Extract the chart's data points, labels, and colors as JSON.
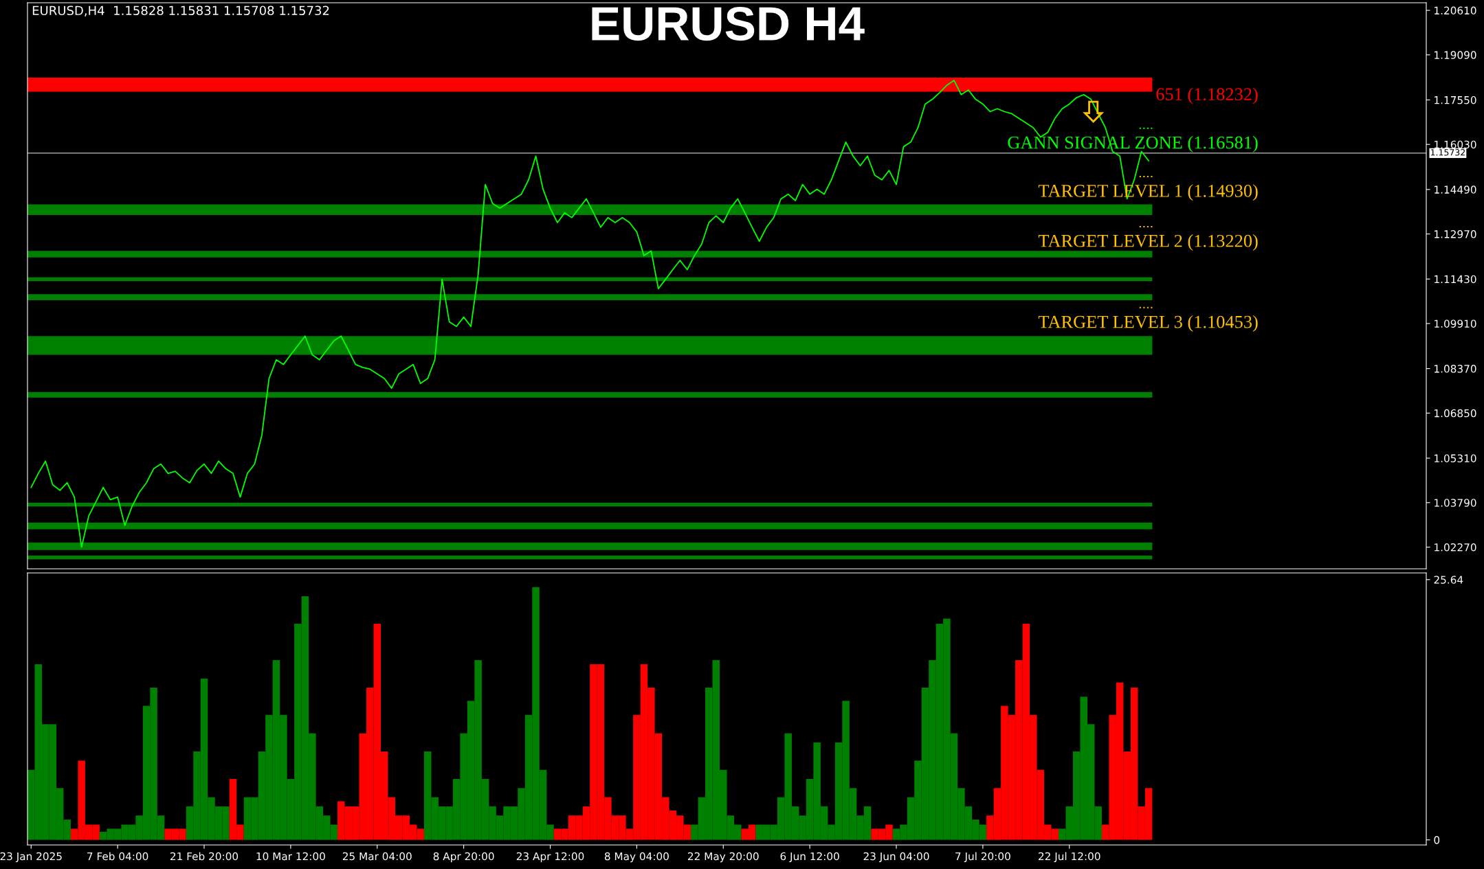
{
  "chart_data": [
    {
      "type": "line",
      "title": "EURUSD H4",
      "tick_labels": "y",
      "grid": false,
      "categories": [
        null,
        null,
        null,
        null,
        null,
        null,
        null,
        null,
        null,
        null,
        null,
        null,
        null,
        null,
        null,
        null,
        null,
        null,
        null,
        null,
        null,
        null,
        null,
        null,
        null,
        null,
        null,
        null,
        null,
        null,
        null,
        null,
        null,
        null,
        null,
        null,
        null,
        null,
        null,
        null,
        null,
        null,
        null,
        null,
        null,
        null,
        null,
        null,
        null,
        null,
        null,
        null,
        null,
        null,
        null,
        null,
        null,
        null,
        null,
        null,
        null,
        null,
        null,
        null,
        null,
        null,
        null,
        null,
        null,
        null,
        null,
        null,
        null,
        null,
        null,
        null,
        null,
        null,
        null,
        null,
        null,
        null,
        null,
        null,
        null,
        null,
        null,
        null,
        null,
        null,
        null,
        null,
        null,
        null,
        null,
        null,
        null,
        null,
        null,
        null,
        null,
        null,
        null,
        null,
        null,
        null,
        null,
        null,
        null,
        null,
        null,
        null,
        null,
        null,
        null,
        null,
        null,
        null,
        null,
        null,
        null,
        null,
        null,
        null,
        null,
        null,
        null,
        null,
        null,
        null,
        null,
        null,
        null,
        null,
        null,
        null,
        null,
        null,
        null,
        null,
        null,
        null,
        null,
        null,
        null,
        null,
        null,
        null,
        null,
        null,
        null,
        null,
        null,
        null,
        null,
        null,
        null,
        null,
        null,
        null,
        null,
        null,
        null,
        null,
        null,
        null,
        null,
        null,
        null,
        null,
        null,
        null,
        null,
        null,
        null,
        null,
        null,
        null,
        null,
        null,
        null,
        null,
        null,
        null,
        null,
        null,
        null,
        null,
        null,
        null,
        null,
        null,
        null,
        null
      ],
      "ylim": [
        1.0153,
        1.2087
      ],
      "yticks": [
        {
          "value": 1.2061,
          "label": "1.20610"
        },
        {
          "value": 1.1909,
          "label": "1.19090"
        },
        {
          "value": 1.1755,
          "label": "1.17550"
        },
        {
          "value": 1.1603,
          "label": "1.16030"
        },
        {
          "value": 1.1449,
          "label": "1.14490"
        },
        {
          "value": 1.1297,
          "label": "1.12970"
        },
        {
          "value": 1.1143,
          "label": "1.11430"
        },
        {
          "value": 1.0991,
          "label": "1.09910"
        },
        {
          "value": 1.0837,
          "label": "1.08370"
        },
        {
          "value": 1.0685,
          "label": "1.06850"
        },
        {
          "value": 1.0531,
          "label": "1.05310"
        },
        {
          "value": 1.0379,
          "label": "1.03790"
        },
        {
          "value": 1.0227,
          "label": "1.02270"
        }
      ],
      "ref_lines": [
        {
          "axis": "y",
          "value": 1.15732,
          "label": "1.15732",
          "color": "#c0c0c0",
          "line_style": "solid"
        },
        {
          "axis": "y",
          "value": 1.18232,
          "label": "651 (1.18232)",
          "color": "#ff0000",
          "line_style": "dotted"
        },
        {
          "axis": "y",
          "value": 1.16581,
          "label": "GANN SIGNAL ZONE (1.16581)",
          "color": "#00ff00",
          "line_style": "dotted"
        },
        {
          "axis": "y",
          "value": 1.1493,
          "label": "TARGET LEVEL 1 (1.14930)",
          "color": "#ffc000",
          "line_style": "dotted"
        },
        {
          "axis": "y",
          "value": 1.1322,
          "label": "TARGET LEVEL 2 (1.13220)",
          "color": "#ffc000",
          "line_style": "dotted"
        },
        {
          "axis": "y",
          "value": 1.10453,
          "label": "TARGET LEVEL 3 (1.10453)",
          "color": "#ffc000",
          "line_style": "dotted"
        }
      ],
      "bands": [
        {
          "axis": "y",
          "from": 1.1783,
          "to": 1.1831,
          "color": "#ff0000"
        },
        {
          "axis": "y",
          "from": 1.1362,
          "to": 1.1398,
          "color": "#008000"
        },
        {
          "axis": "y",
          "from": 1.1217,
          "to": 1.1239,
          "color": "#008000"
        },
        {
          "axis": "y",
          "from": 1.1136,
          "to": 1.1149,
          "color": "#008000"
        },
        {
          "axis": "y",
          "from": 1.1071,
          "to": 1.1091,
          "color": "#008000"
        },
        {
          "axis": "y",
          "from": 1.0884,
          "to": 1.0948,
          "color": "#008000"
        },
        {
          "axis": "y",
          "from": 1.0738,
          "to": 1.0757,
          "color": "#008000"
        },
        {
          "axis": "y",
          "from": 1.0366,
          "to": 1.0379,
          "color": "#008000"
        },
        {
          "axis": "y",
          "from": 1.0288,
          "to": 1.0311,
          "color": "#008000"
        },
        {
          "axis": "y",
          "from": 1.0217,
          "to": 1.0243,
          "color": "#008000"
        },
        {
          "axis": "y",
          "from": 1.0185,
          "to": 1.0198,
          "color": "#008000"
        }
      ],
      "annotations": [
        "EURUSD,H4  1.15828 1.15831 1.15708 1.15732"
      ],
      "series": [
        {
          "type": "line",
          "color": "#00ff00",
          "values": [
            1.0431,
            1.0479,
            1.0521,
            1.044,
            1.0421,
            1.0447,
            1.0398,
            1.0227,
            1.0334,
            1.0382,
            1.0431,
            1.0389,
            1.0398,
            1.0301,
            1.0366,
            1.0414,
            1.0447,
            1.0495,
            1.0511,
            1.0479,
            1.0486,
            1.0463,
            1.0447,
            1.0489,
            1.0511,
            1.0479,
            1.0521,
            1.0495,
            1.0479,
            1.0398,
            1.0479,
            1.0511,
            1.0609,
            1.0803,
            1.0867,
            1.0851,
            1.0884,
            1.0916,
            1.0948,
            1.0884,
            1.0867,
            1.09,
            1.0932,
            1.0948,
            1.09,
            1.0851,
            1.0841,
            1.0835,
            1.0819,
            1.0803,
            1.077,
            1.0819,
            1.0835,
            1.0851,
            1.0786,
            1.0803,
            1.0867,
            1.1142,
            1.0997,
            1.0981,
            1.1013,
            1.0981,
            1.1158,
            1.1466,
            1.1401,
            1.1385,
            1.1401,
            1.1417,
            1.1433,
            1.1482,
            1.1563,
            1.145,
            1.1385,
            1.1336,
            1.1369,
            1.1353,
            1.1385,
            1.1417,
            1.1369,
            1.132,
            1.1353,
            1.1336,
            1.1353,
            1.1336,
            1.1304,
            1.1223,
            1.1239,
            1.111,
            1.1142,
            1.1175,
            1.1207,
            1.1175,
            1.1223,
            1.1262,
            1.1336,
            1.1359,
            1.1336,
            1.1385,
            1.1417,
            1.1369,
            1.132,
            1.1272,
            1.132,
            1.1353,
            1.1417,
            1.1433,
            1.1411,
            1.1466,
            1.1433,
            1.145,
            1.1433,
            1.1482,
            1.1547,
            1.1611,
            1.1563,
            1.153,
            1.1563,
            1.1498,
            1.1482,
            1.1514,
            1.1466,
            1.1595,
            1.1611,
            1.166,
            1.1741,
            1.1757,
            1.178,
            1.1805,
            1.1822,
            1.1773,
            1.1789,
            1.1757,
            1.1741,
            1.1715,
            1.1725,
            1.1715,
            1.1708,
            1.1692,
            1.1676,
            1.166,
            1.1628,
            1.1644,
            1.1692,
            1.1725,
            1.1741,
            1.1763,
            1.1773,
            1.1757,
            1.1708,
            1.166,
            1.1579,
            1.1563,
            1.1417,
            1.1482,
            1.1579,
            1.1547,
            null,
            null,
            null,
            null,
            null,
            null,
            null,
            null,
            null,
            null,
            null,
            null,
            null,
            null,
            null,
            null,
            null,
            null,
            null,
            null,
            null,
            null,
            null,
            null,
            null,
            null,
            null,
            null,
            null,
            null,
            null,
            null,
            null,
            null,
            null,
            null,
            null,
            null
          ]
        }
      ]
    },
    {
      "type": "bar",
      "grid": false,
      "categories": [
        "23 Jan 2025",
        null,
        null,
        null,
        null,
        null,
        null,
        null,
        null,
        null,
        null,
        null,
        "7 Feb 04:00",
        null,
        null,
        null,
        null,
        null,
        null,
        null,
        null,
        null,
        null,
        null,
        "21 Feb 20:00",
        null,
        null,
        null,
        null,
        null,
        null,
        null,
        null,
        null,
        null,
        null,
        "10 Mar 12:00",
        null,
        null,
        null,
        null,
        null,
        null,
        null,
        null,
        null,
        null,
        null,
        "25 Mar 04:00",
        null,
        null,
        null,
        null,
        null,
        null,
        null,
        null,
        null,
        null,
        null,
        "8 Apr 20:00",
        null,
        null,
        null,
        null,
        null,
        null,
        null,
        null,
        null,
        null,
        null,
        "23 Apr 12:00",
        null,
        null,
        null,
        null,
        null,
        null,
        null,
        null,
        null,
        null,
        null,
        "8 May 04:00",
        null,
        null,
        null,
        null,
        null,
        null,
        null,
        null,
        null,
        null,
        null,
        "22 May 20:00",
        null,
        null,
        null,
        null,
        null,
        null,
        null,
        null,
        null,
        null,
        null,
        "6 Jun 12:00",
        null,
        null,
        null,
        null,
        null,
        null,
        null,
        null,
        null,
        null,
        null,
        "23 Jun 04:00",
        null,
        null,
        null,
        null,
        null,
        null,
        null,
        null,
        null,
        null,
        null,
        "7 Jul 20:00",
        null,
        null,
        null,
        null,
        null,
        null,
        null,
        null,
        null,
        null,
        null,
        "22 Jul 12:00",
        null,
        null,
        null,
        null,
        null,
        null,
        null,
        null,
        null,
        null,
        null,
        null,
        null,
        null,
        null,
        null,
        null,
        null,
        null,
        null,
        null,
        null,
        null,
        null,
        null,
        null,
        null,
        null,
        null,
        null,
        null,
        null,
        null,
        null,
        null,
        null,
        null,
        null,
        null,
        null,
        null,
        null,
        null,
        null,
        null,
        null,
        null,
        null,
        null
      ],
      "ylim": [
        -0.5,
        26.3
      ],
      "yticks": [
        0,
        25.64
      ],
      "values": [
        6.9,
        17.3,
        11.4,
        11.4,
        5.1,
        2.0,
        1.1,
        7.8,
        1.5,
        1.5,
        0.8,
        1.1,
        1.1,
        1.5,
        1.5,
        2.4,
        13.2,
        15.0,
        2.4,
        1.1,
        1.1,
        1.1,
        3.3,
        8.7,
        15.9,
        4.2,
        3.3,
        3.3,
        6.0,
        1.5,
        4.2,
        4.2,
        8.7,
        12.3,
        17.7,
        12.3,
        6.0,
        21.3,
        24.0,
        10.5,
        3.3,
        2.4,
        1.5,
        3.8,
        3.3,
        3.3,
        10.5,
        15.0,
        21.3,
        8.7,
        4.2,
        2.4,
        2.4,
        1.5,
        1.1,
        8.7,
        4.2,
        3.3,
        3.3,
        6.0,
        10.5,
        13.7,
        17.7,
        6.0,
        3.3,
        2.4,
        3.3,
        3.3,
        5.1,
        12.3,
        24.9,
        6.9,
        1.5,
        1.1,
        1.1,
        2.4,
        2.4,
        3.3,
        17.3,
        17.3,
        4.2,
        2.4,
        2.4,
        1.1,
        12.3,
        17.3,
        15.0,
        10.5,
        4.2,
        2.9,
        2.4,
        1.5,
        1.5,
        4.2,
        15.0,
        17.7,
        6.9,
        2.4,
        1.5,
        1.1,
        1.5,
        1.5,
        1.5,
        1.5,
        4.2,
        10.5,
        3.3,
        2.4,
        6.0,
        9.6,
        3.3,
        1.5,
        9.6,
        13.7,
        5.1,
        2.4,
        3.3,
        1.1,
        1.1,
        1.5,
        1.1,
        1.5,
        4.2,
        7.8,
        15.0,
        17.7,
        21.3,
        21.8,
        10.5,
        5.1,
        3.3,
        2.0,
        1.5,
        2.4,
        5.1,
        13.2,
        12.3,
        17.7,
        21.3,
        12.3,
        6.9,
        1.5,
        1.1,
        1.1,
        3.3,
        8.7,
        14.1,
        11.4,
        3.3,
        1.5,
        12.3,
        15.5,
        8.7,
        15.0,
        3.3,
        5.1,
        null,
        null,
        null,
        null,
        null,
        null,
        null,
        null,
        null,
        null,
        null,
        null,
        null,
        null,
        null,
        null,
        null,
        null,
        null,
        null,
        null,
        null,
        null,
        null,
        null,
        null,
        null,
        null,
        null,
        null,
        null,
        null,
        null,
        null,
        null,
        null,
        null,
        null
      ],
      "colors": [
        "#008000",
        "#008000",
        "#008000",
        "#008000",
        "#008000",
        "#008000",
        "#ff0000",
        "#ff0000",
        "#ff0000",
        "#ff0000",
        "#008000",
        "#008000",
        "#008000",
        "#008000",
        "#008000",
        "#008000",
        "#008000",
        "#008000",
        "#008000",
        "#ff0000",
        "#ff0000",
        "#ff0000",
        "#008000",
        "#008000",
        "#008000",
        "#008000",
        "#008000",
        "#008000",
        "#ff0000",
        "#ff0000",
        "#008000",
        "#008000",
        "#008000",
        "#008000",
        "#008000",
        "#008000",
        "#008000",
        "#008000",
        "#008000",
        "#008000",
        "#008000",
        "#008000",
        "#008000",
        "#ff0000",
        "#ff0000",
        "#ff0000",
        "#ff0000",
        "#ff0000",
        "#ff0000",
        "#ff0000",
        "#ff0000",
        "#ff0000",
        "#ff0000",
        "#ff0000",
        "#ff0000",
        "#008000",
        "#008000",
        "#008000",
        "#008000",
        "#008000",
        "#008000",
        "#008000",
        "#008000",
        "#008000",
        "#008000",
        "#008000",
        "#008000",
        "#008000",
        "#008000",
        "#008000",
        "#008000",
        "#008000",
        "#008000",
        "#ff0000",
        "#ff0000",
        "#ff0000",
        "#ff0000",
        "#ff0000",
        "#ff0000",
        "#ff0000",
        "#ff0000",
        "#ff0000",
        "#ff0000",
        "#ff0000",
        "#ff0000",
        "#ff0000",
        "#ff0000",
        "#ff0000",
        "#ff0000",
        "#ff0000",
        "#ff0000",
        "#ff0000",
        "#008000",
        "#008000",
        "#008000",
        "#008000",
        "#008000",
        "#008000",
        "#008000",
        "#ff0000",
        "#ff0000",
        "#008000",
        "#008000",
        "#008000",
        "#008000",
        "#008000",
        "#008000",
        "#008000",
        "#008000",
        "#008000",
        "#008000",
        "#008000",
        "#008000",
        "#008000",
        "#008000",
        "#008000",
        "#008000",
        "#ff0000",
        "#ff0000",
        "#ff0000",
        "#008000",
        "#008000",
        "#008000",
        "#008000",
        "#008000",
        "#008000",
        "#008000",
        "#008000",
        "#008000",
        "#008000",
        "#008000",
        "#008000",
        "#008000",
        "#ff0000",
        "#ff0000",
        "#ff0000",
        "#ff0000",
        "#ff0000",
        "#ff0000",
        "#ff0000",
        "#ff0000",
        "#ff0000",
        "#ff0000",
        "#008000",
        "#008000",
        "#008000",
        "#008000",
        "#008000",
        "#008000",
        "#ff0000",
        "#ff0000",
        "#ff0000",
        "#ff0000",
        "#ff0000",
        "#ff0000",
        "#ff0000",
        null,
        null,
        null,
        null,
        null,
        null,
        null,
        null,
        null,
        null,
        null,
        null,
        null,
        null,
        null,
        null,
        null,
        null,
        null,
        null,
        null,
        null,
        null,
        null,
        null,
        null,
        null,
        null,
        null,
        null,
        null,
        null,
        null,
        null,
        null,
        null,
        null,
        null
      ]
    }
  ]
}
